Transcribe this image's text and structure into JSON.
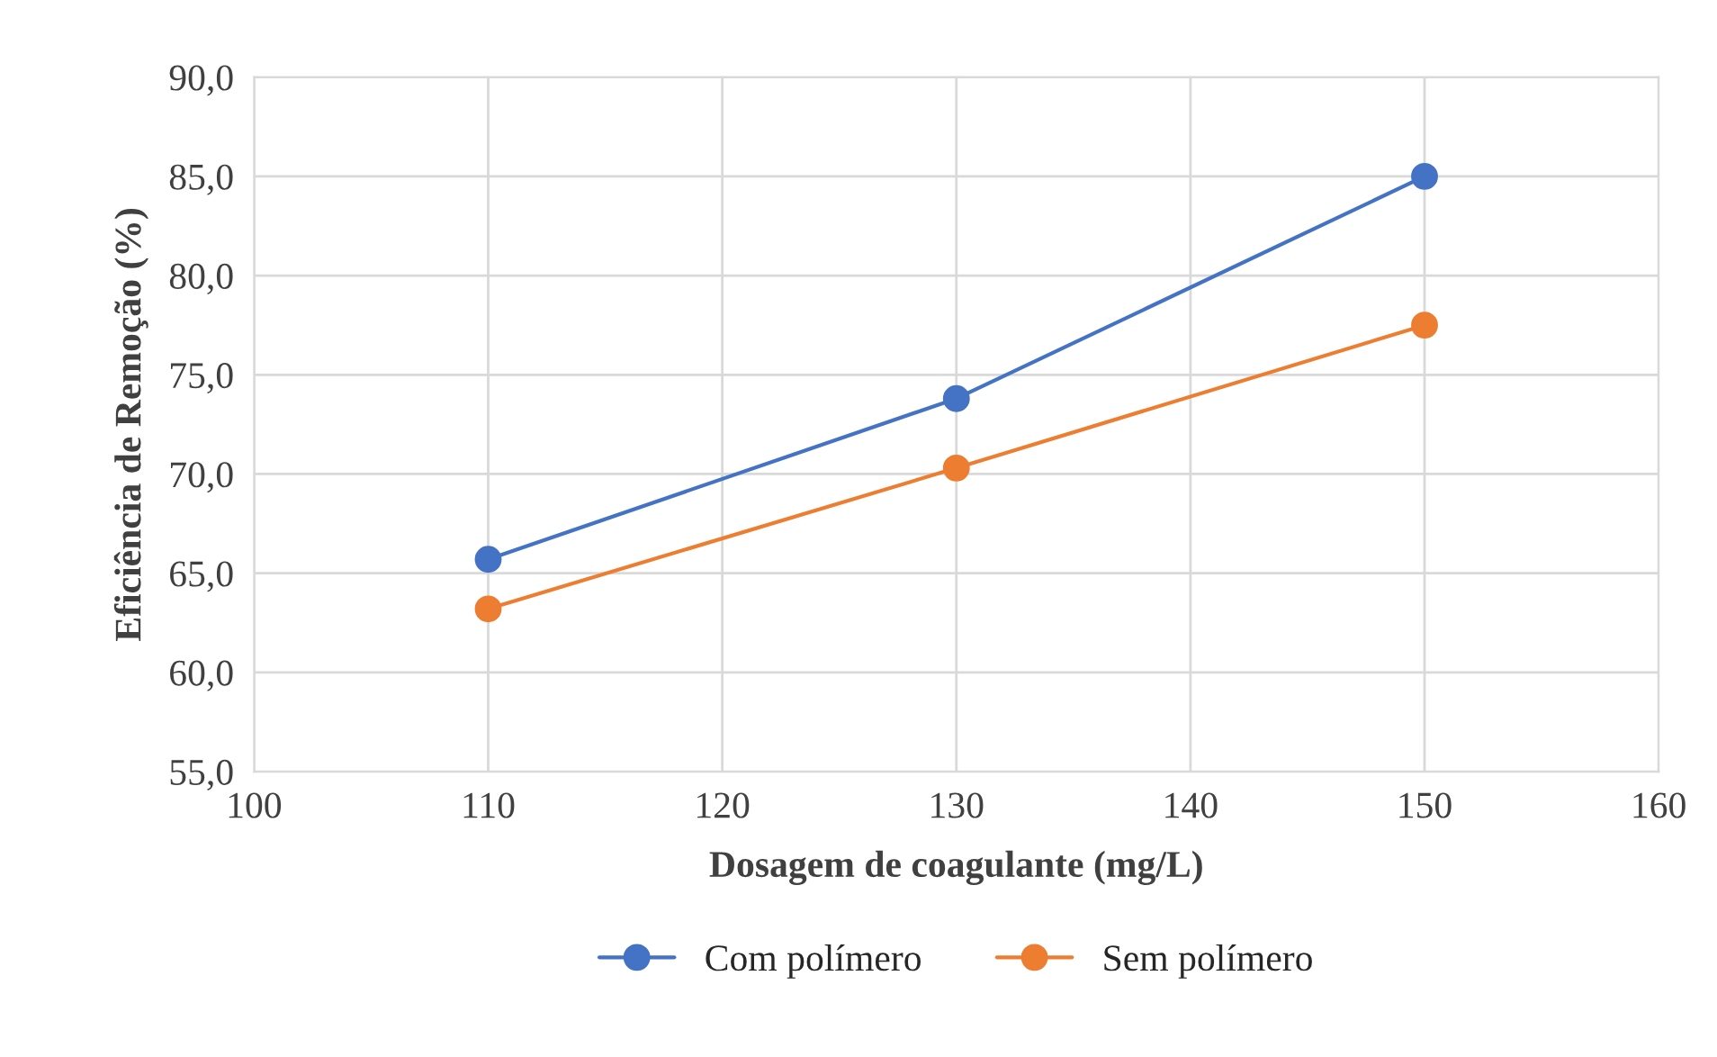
{
  "chart_data": {
    "type": "line",
    "xlabel": "Dosagem de coagulante (mg/L)",
    "ylabel": "Eficiência de Remoção (%)",
    "x": [
      110,
      130,
      150
    ],
    "series": [
      {
        "name": "Com polímero",
        "color": "#4472c4",
        "values": [
          65.7,
          73.8,
          85.0
        ]
      },
      {
        "name": "Sem polímero",
        "color": "#ed7d31",
        "values": [
          63.2,
          70.3,
          77.5
        ]
      }
    ],
    "xlim": [
      100,
      160
    ],
    "xticks": [
      100,
      110,
      120,
      130,
      140,
      150,
      160
    ],
    "ylim": [
      55,
      90
    ],
    "yticks": [
      {
        "value": 55,
        "label": "55,0"
      },
      {
        "value": 60,
        "label": "60,0"
      },
      {
        "value": 65,
        "label": "65,0"
      },
      {
        "value": 70,
        "label": "70,0"
      },
      {
        "value": 75,
        "label": "75,0"
      },
      {
        "value": 80,
        "label": "80,0"
      },
      {
        "value": 85,
        "label": "85,0"
      },
      {
        "value": 90,
        "label": "90,0"
      }
    ],
    "grid": true,
    "legend": "bottom",
    "marker": "circle",
    "line_style": "solid"
  }
}
